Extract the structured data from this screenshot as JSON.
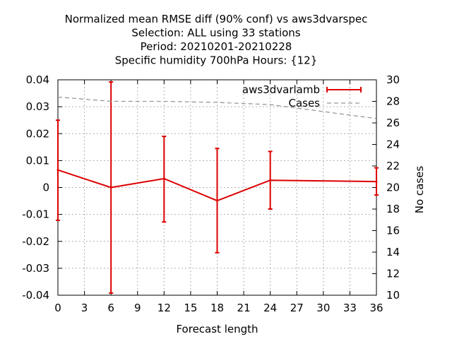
{
  "chart_data": {
    "type": "line",
    "title_lines": [
      "Normalized mean RMSE diff (90% conf) vs aws3dvarspec",
      "Selection: ALL using    33 stations",
      "Period: 20210201-20210228",
      "Specific humidity 700hPa   Hours: {12}"
    ],
    "xlabel": "Forecast length",
    "ylabel": "",
    "y2label": "No cases",
    "xlim": [
      0,
      36
    ],
    "ylim": [
      -0.04,
      0.04
    ],
    "y2lim": [
      10,
      30
    ],
    "xticks": [
      0,
      3,
      6,
      9,
      12,
      15,
      18,
      21,
      24,
      27,
      30,
      33,
      36
    ],
    "yticks": [
      -0.04,
      -0.03,
      -0.02,
      -0.01,
      0,
      0.01,
      0.02,
      0.03,
      0.04
    ],
    "ytick_labels": [
      "-0.04",
      "-0.03",
      "-0.02",
      "-0.01",
      "0",
      "0.01",
      "0.02",
      "0.03",
      "0.04"
    ],
    "y2ticks": [
      10,
      12,
      14,
      16,
      18,
      20,
      22,
      24,
      26,
      28,
      30
    ],
    "grid": true,
    "legend_position": "top-right",
    "series": [
      {
        "name": "aws3dvarlamb",
        "axis": "y1",
        "color": "#dd0000",
        "style": "line-errorbars",
        "x": [
          0,
          6,
          12,
          18,
          24,
          36
        ],
        "y": [
          0.0065,
          0.0,
          0.0033,
          -0.0049,
          0.0027,
          0.0022
        ],
        "ylow": [
          -0.0122,
          -0.0392,
          -0.0128,
          -0.0242,
          -0.008,
          -0.0028
        ],
        "yhigh": [
          0.025,
          0.0392,
          0.019,
          0.0145,
          0.0134,
          0.0073
        ]
      },
      {
        "name": "Cases",
        "axis": "y2",
        "color": "#999999",
        "style": "dashed",
        "x": [
          0,
          6,
          12,
          18,
          24,
          36
        ],
        "y": [
          28.4,
          28.0,
          28.0,
          27.9,
          27.7,
          26.4
        ]
      }
    ]
  }
}
